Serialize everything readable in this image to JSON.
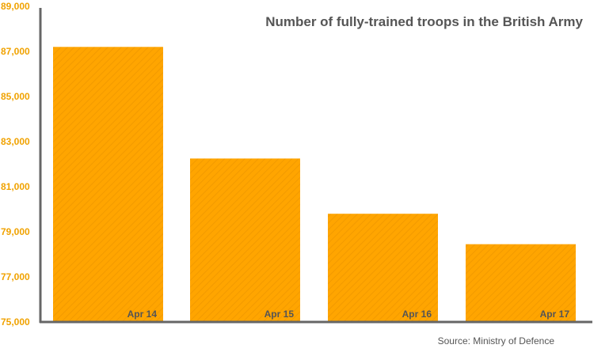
{
  "chart_data": {
    "type": "bar",
    "title": "Number of fully-trained troops in the British Army",
    "categories": [
      "Apr 14",
      "Apr 15",
      "Apr 16",
      "Apr 17"
    ],
    "values": [
      87200,
      82250,
      79800,
      78450
    ],
    "ylim": [
      75000,
      89000
    ],
    "yticks": [
      75000,
      77000,
      79000,
      81000,
      83000,
      85000,
      87000,
      89000
    ],
    "ytick_labels": [
      "75,000",
      "77,000",
      "79,000",
      "81,000",
      "83,000",
      "85,000",
      "87,000",
      "89,000"
    ],
    "xlabel": "",
    "ylabel": "",
    "source": "Source: Ministry of Defence",
    "bar_color": "#ffa500",
    "axis_color": "#666666",
    "tick_color": "#f0a200"
  }
}
